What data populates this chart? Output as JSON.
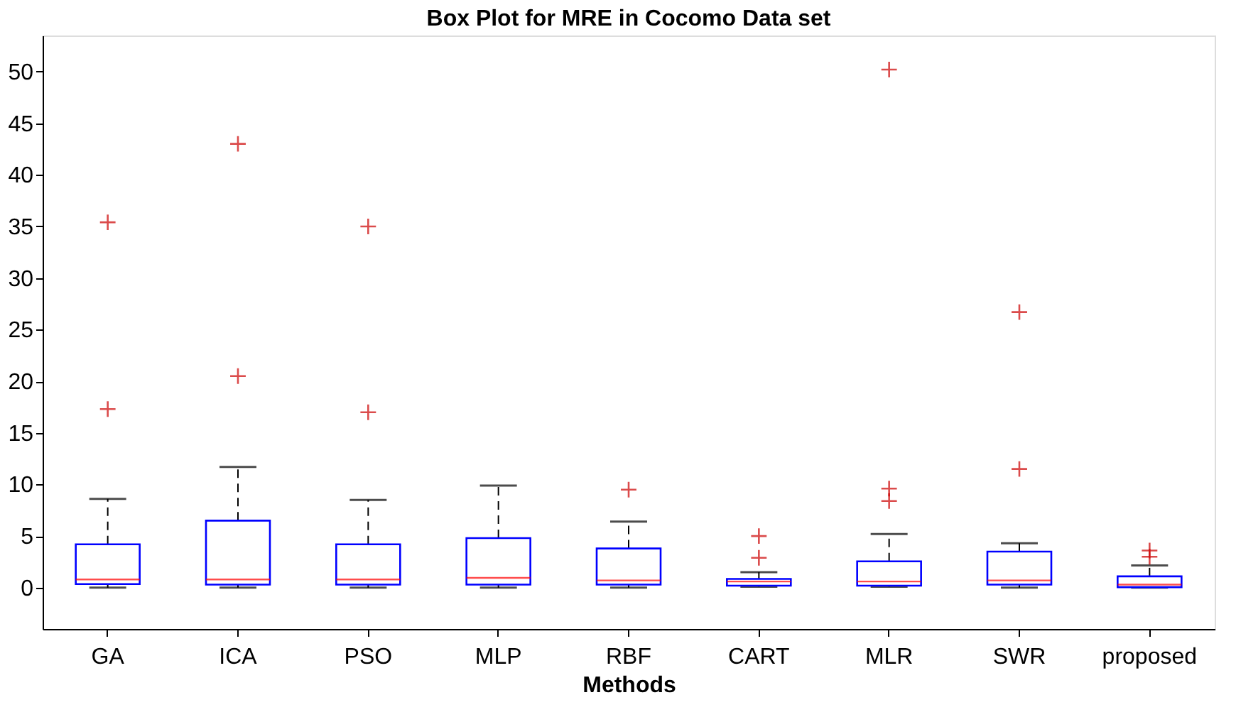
{
  "chart_data": {
    "type": "box",
    "title": "Box Plot for MRE in Cocomo Data set",
    "xlabel": "Methods",
    "categories": [
      "GA",
      "ICA",
      "PSO",
      "MLP",
      "RBF",
      "CART",
      "MLR",
      "SWR",
      "proposed"
    ],
    "boxes": [
      {
        "low": 0,
        "q1": 0.35,
        "median": 0.8,
        "q3": 4.2,
        "high": 8.6,
        "outliers": [
          17.3,
          35.4
        ]
      },
      {
        "low": 0,
        "q1": 0.3,
        "median": 0.8,
        "q3": 6.5,
        "high": 11.7,
        "outliers": [
          20.5,
          43
        ]
      },
      {
        "low": 0,
        "q1": 0.3,
        "median": 0.8,
        "q3": 4.2,
        "high": 8.5,
        "outliers": [
          17,
          35
        ]
      },
      {
        "low": 0,
        "q1": 0.3,
        "median": 0.95,
        "q3": 4.8,
        "high": 9.9
      },
      {
        "low": 0,
        "q1": 0.3,
        "median": 0.7,
        "q3": 3.8,
        "high": 6.4,
        "outliers": [
          9.5
        ]
      },
      {
        "low": 0.1,
        "q1": 0.2,
        "median": 0.6,
        "q3": 0.85,
        "high": 1.5,
        "outliers": [
          2.9,
          5.0
        ]
      },
      {
        "low": 0.1,
        "q1": 0.2,
        "median": 0.6,
        "q3": 2.55,
        "high": 5.2,
        "outliers": [
          8.4,
          9.6,
          50.2
        ]
      },
      {
        "low": 0,
        "q1": 0.3,
        "median": 0.7,
        "q3": 3.5,
        "high": 4.3,
        "outliers": [
          11.5,
          26.7
        ]
      },
      {
        "low": 0,
        "q1": 0.05,
        "median": 0.3,
        "q3": 1.1,
        "high": 2.15,
        "outliers": [
          3.0,
          3.6
        ]
      }
    ],
    "ylim": [
      -4,
      53.5
    ],
    "yticks": [
      0,
      5,
      10,
      15,
      20,
      25,
      30,
      35,
      40,
      45,
      50
    ],
    "grid": false,
    "marker": "cross"
  }
}
